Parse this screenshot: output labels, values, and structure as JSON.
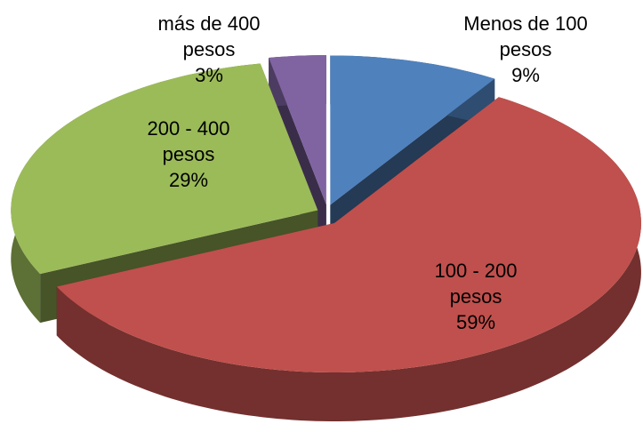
{
  "chart_data": {
    "type": "pie",
    "categories": [
      "Menos de 100 pesos",
      "100 - 200 pesos",
      "200 - 400 pesos",
      "más de 400 pesos"
    ],
    "values": [
      9,
      59,
      29,
      3
    ],
    "value_labels": [
      "9%",
      "59%",
      "29%",
      "3%"
    ],
    "colors": [
      "#4f81bd",
      "#c0504d",
      "#9bbb59",
      "#8064a2"
    ]
  }
}
